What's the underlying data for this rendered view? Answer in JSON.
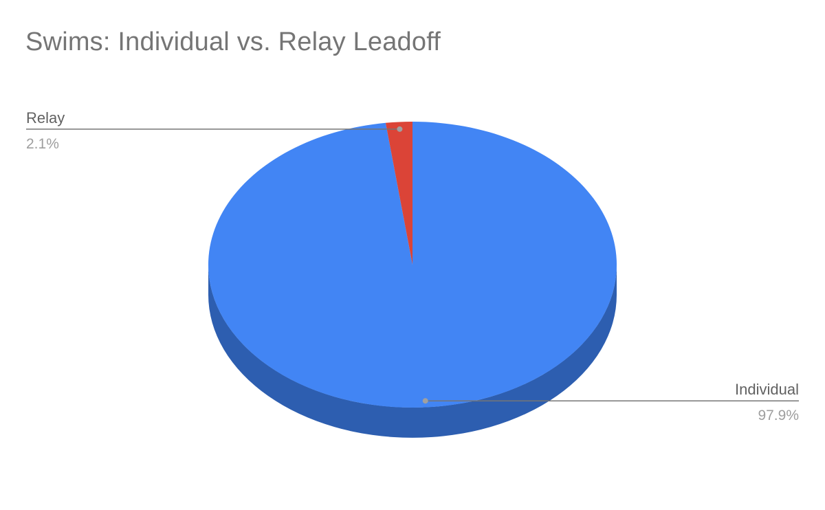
{
  "chart_data": {
    "type": "pie",
    "title": "Swims: Individual vs. Relay Leadoff",
    "three_d": true,
    "legend": "labels beside slices",
    "slices": [
      {
        "name": "Individual",
        "value": 97.9,
        "value_label": "97.9%",
        "color": "#4285f4",
        "side_color": "#2d5eb0"
      },
      {
        "name": "Relay",
        "value": 2.1,
        "value_label": "2.1%",
        "color": "#db4437",
        "side_color": "#9c2f25"
      }
    ]
  }
}
